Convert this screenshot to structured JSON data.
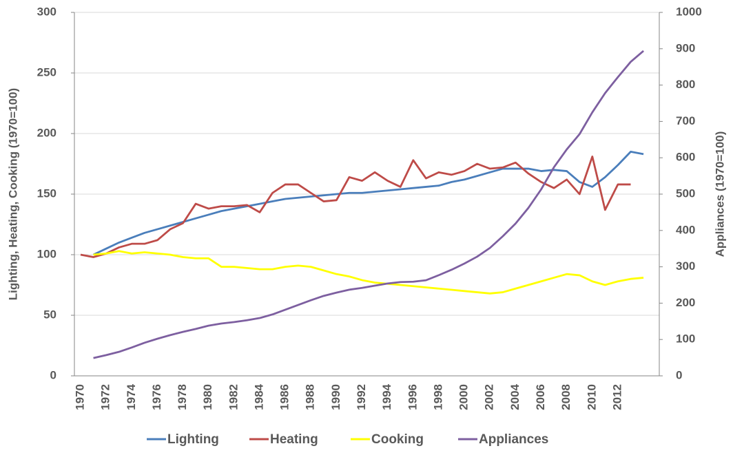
{
  "chart_data": {
    "type": "line",
    "categories": [
      "1970",
      null,
      "1972",
      null,
      "1974",
      null,
      "1976",
      null,
      "1978",
      null,
      "1980",
      null,
      "1982",
      null,
      "1984",
      null,
      "1986",
      null,
      "1988",
      null,
      "1990",
      null,
      "1992",
      null,
      "1994",
      null,
      "1996",
      null,
      "1998",
      null,
      "2000",
      null,
      "2002",
      null,
      "2004",
      null,
      "2006",
      null,
      "2008",
      null,
      "2010",
      null,
      "2012",
      null,
      null
    ],
    "ylabel": "Lighting, Heating, Cooking (1970=100)",
    "y2label": "Appliances (1970=100)",
    "ylim": [
      0,
      300
    ],
    "yticks": [
      0,
      50,
      100,
      150,
      200,
      250,
      300
    ],
    "y2lim": [
      0,
      1000
    ],
    "y2ticks": [
      0,
      100,
      200,
      300,
      400,
      500,
      600,
      700,
      800,
      900,
      1000
    ],
    "legend": "bottom",
    "series": [
      {
        "name": "Lighting",
        "color": "#4a7ebb",
        "values": [
          null,
          100,
          105,
          110,
          114,
          118,
          121,
          124,
          127,
          130,
          133,
          136,
          138,
          140,
          142,
          144,
          146,
          147,
          148,
          149,
          150,
          151,
          151,
          152,
          153,
          154,
          155,
          156,
          157,
          160,
          162,
          165,
          168,
          171,
          171,
          171,
          169,
          170,
          169,
          160,
          156,
          164,
          174,
          185,
          183
        ]
      },
      {
        "name": "Heating",
        "color": "#be4b48",
        "values": [
          100,
          98,
          101,
          106,
          109,
          109,
          112,
          121,
          126,
          142,
          138,
          140,
          140,
          141,
          135,
          151,
          158,
          158,
          151,
          144,
          145,
          164,
          161,
          168,
          161,
          156,
          178,
          163,
          168,
          166,
          169,
          175,
          171,
          172,
          176,
          167,
          160,
          155,
          162,
          150,
          181,
          137,
          158,
          158,
          null
        ]
      },
      {
        "name": "Cooking",
        "color": "#ffff00",
        "values": [
          null,
          100,
          101,
          103,
          101,
          102,
          101,
          100,
          98,
          97,
          97,
          90,
          90,
          89,
          88,
          88,
          90,
          91,
          90,
          87,
          84,
          82,
          79,
          77,
          76,
          75,
          74,
          73,
          72,
          71,
          70,
          69,
          68,
          69,
          72,
          75,
          78,
          81,
          84,
          83,
          78,
          75,
          78,
          80,
          81
        ]
      },
      {
        "name": "Appliances",
        "color": "#7d5fa0",
        "axis": "y2",
        "values": [
          null,
          49,
          57,
          66,
          78,
          91,
          102,
          112,
          121,
          129,
          138,
          144,
          148,
          153,
          159,
          169,
          182,
          195,
          208,
          220,
          229,
          237,
          242,
          248,
          254,
          258,
          259,
          263,
          277,
          292,
          309,
          328,
          352,
          384,
          419,
          462,
          513,
          574,
          623,
          665,
          725,
          778,
          822,
          864,
          894
        ]
      }
    ]
  }
}
